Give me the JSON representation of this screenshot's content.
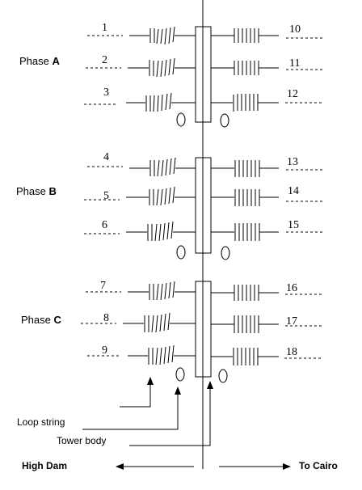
{
  "phases": [
    {
      "prefix": "Phase ",
      "letter": "A",
      "left_numbers": [
        "1",
        "2",
        "3"
      ],
      "right_numbers": [
        "10",
        "11",
        "12"
      ]
    },
    {
      "prefix": "Phase ",
      "letter": "B",
      "left_numbers": [
        "4",
        "5",
        "6"
      ],
      "right_numbers": [
        "13",
        "14",
        "15"
      ]
    },
    {
      "prefix": "Phase ",
      "letter": "C",
      "left_numbers": [
        "7",
        "8",
        "9"
      ],
      "right_numbers": [
        "16",
        "17",
        "18"
      ]
    }
  ],
  "labels": {
    "loop_string": "Loop string",
    "tower_body": "Tower body",
    "high_dam": "High Dam",
    "to_cairo": "To Cairo"
  }
}
